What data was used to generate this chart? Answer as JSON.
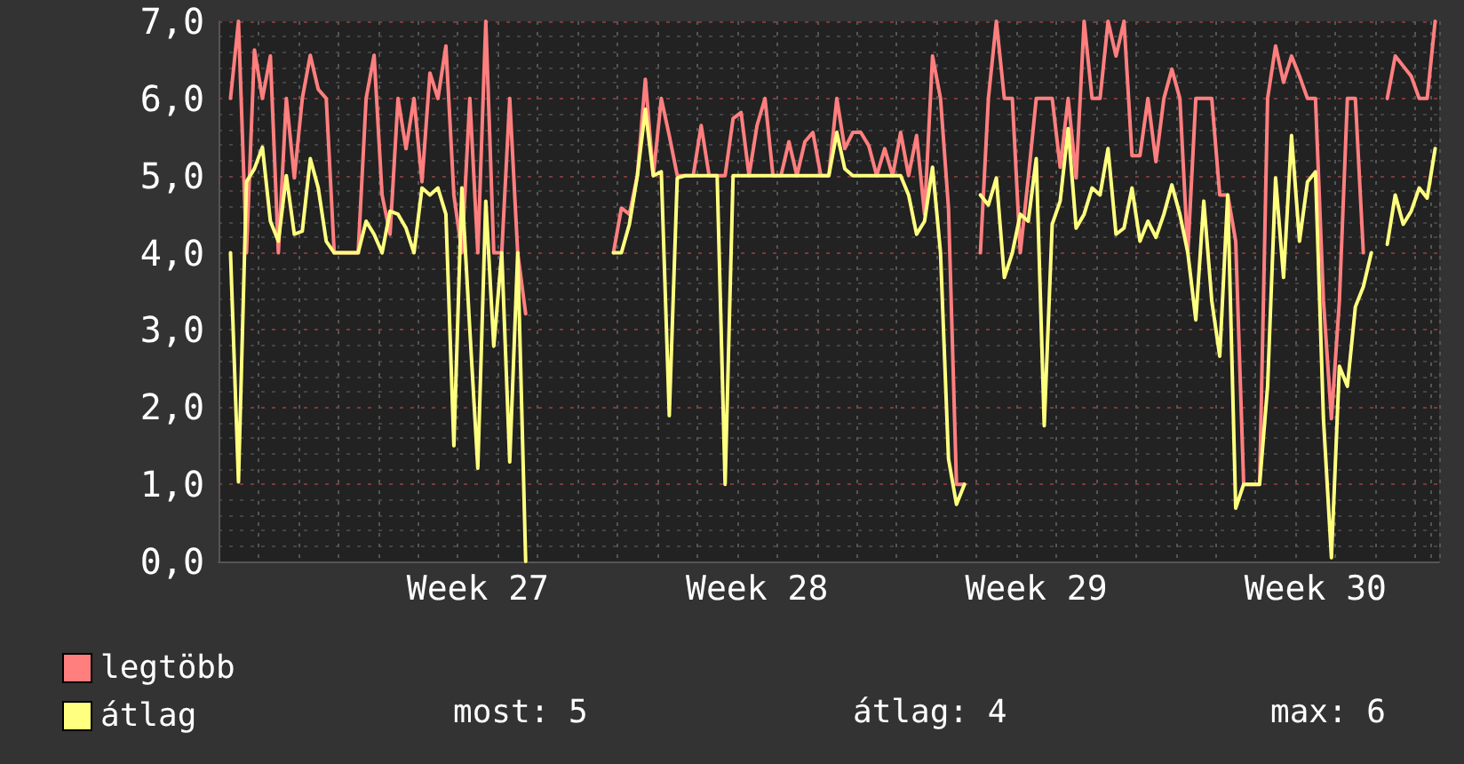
{
  "chart_data": {
    "type": "line",
    "categories": [
      null,
      null,
      null,
      null,
      null,
      null,
      null,
      null,
      null,
      null,
      null,
      null,
      null,
      null,
      null,
      null,
      null,
      null,
      null,
      null,
      null,
      null,
      null,
      null,
      null,
      null,
      null,
      null,
      null,
      null,
      null,
      null,
      "Week 27",
      null,
      null,
      null,
      null,
      null,
      null,
      null,
      null,
      null,
      null,
      null,
      null,
      null,
      null,
      null,
      null,
      null,
      null,
      null,
      null,
      null,
      null,
      null,
      null,
      null,
      null,
      null,
      null,
      null,
      null,
      null,
      null,
      null,
      null,
      "Week 28",
      null,
      null,
      null,
      null,
      null,
      null,
      null,
      null,
      null,
      null,
      null,
      null,
      null,
      null,
      null,
      null,
      null,
      null,
      null,
      null,
      null,
      null,
      null,
      null,
      null,
      null,
      null,
      null,
      null,
      null,
      null,
      null,
      null,
      null,
      "Week 29",
      null,
      null,
      null,
      null,
      null,
      null,
      null,
      null,
      null,
      null,
      null,
      null,
      null,
      null,
      null,
      null,
      null,
      null,
      null,
      null,
      null,
      null,
      null,
      null,
      null,
      null,
      null,
      null,
      null,
      null,
      null,
      null,
      null,
      null,
      "Week 30",
      null,
      null,
      null,
      null,
      null,
      null,
      null,
      null,
      null,
      null,
      null,
      null,
      null,
      null,
      null
    ],
    "ylim": [
      0,
      7
    ],
    "yticks": [
      {
        "value": 0,
        "label": "0,0"
      },
      {
        "value": 1,
        "label": "1,0"
      },
      {
        "value": 2,
        "label": "2,0"
      },
      {
        "value": 3,
        "label": "3,0"
      },
      {
        "value": 4,
        "label": "4,0"
      },
      {
        "value": 5,
        "label": "5,0"
      },
      {
        "value": 6,
        "label": "6,0"
      },
      {
        "value": 7,
        "label": "7,0"
      }
    ],
    "grid": true,
    "legend": "bottom left",
    "marker": "none",
    "line_style": "solid",
    "annotations": [
      "most: 5",
      "átlag: 4",
      "max: 6"
    ],
    "series": [
      {
        "name": "legtöbb",
        "color": "#ff7f7f",
        "values": [
          null,
          6.0,
          7.0,
          4.0,
          6.63,
          6.0,
          6.55,
          4.0,
          6.0,
          4.97,
          6.0,
          6.56,
          6.12,
          6.0,
          4.0,
          4.0,
          4.0,
          4.0,
          6.0,
          6.56,
          4.75,
          4.24,
          6.0,
          5.35,
          6.0,
          4.92,
          6.33,
          6.0,
          6.68,
          4.75,
          4.0,
          6.0,
          4.0,
          7.0,
          4.0,
          4.0,
          6.0,
          4.0,
          3.21,
          null,
          null,
          null,
          null,
          null,
          null,
          null,
          null,
          null,
          null,
          4.0,
          4.58,
          4.5,
          5.0,
          6.25,
          5.0,
          6.0,
          5.52,
          5.0,
          5.0,
          5.0,
          5.65,
          5.0,
          5.0,
          5.0,
          5.74,
          5.82,
          5.0,
          5.65,
          6.0,
          5.0,
          5.0,
          5.44,
          5.0,
          5.44,
          5.56,
          5.0,
          5.0,
          6.0,
          5.35,
          5.56,
          5.56,
          5.39,
          5.0,
          5.35,
          5.0,
          5.56,
          5.0,
          5.52,
          4.5,
          6.55,
          6.0,
          4.58,
          1.0,
          1.0,
          null,
          4.0,
          6.0,
          7.0,
          6.0,
          6.0,
          4.0,
          4.97,
          6.0,
          6.0,
          6.0,
          5.11,
          6.0,
          4.97,
          7.0,
          6.0,
          6.0,
          7.0,
          6.55,
          7.0,
          5.26,
          5.26,
          6.0,
          5.18,
          6.0,
          6.38,
          6.0,
          4.0,
          6.0,
          6.0,
          6.0,
          4.75,
          4.75,
          4.15,
          1.0,
          1.0,
          1.0,
          6.0,
          6.68,
          6.21,
          6.55,
          6.29,
          6.0,
          6.0,
          3.38,
          1.85,
          3.38,
          6.0,
          6.0,
          4.0,
          null,
          null,
          6.0,
          6.55,
          6.42,
          6.29,
          6.0,
          6.0,
          7.0
        ]
      },
      {
        "name": "átlag",
        "color": "#ffff80",
        "values": [
          null,
          4.0,
          1.03,
          4.92,
          5.09,
          5.37,
          4.41,
          4.15,
          5.0,
          4.24,
          4.28,
          5.22,
          4.84,
          4.15,
          4.0,
          4.0,
          4.0,
          4.0,
          4.41,
          4.24,
          4.0,
          4.54,
          4.5,
          4.32,
          4.0,
          4.84,
          4.75,
          4.84,
          4.5,
          1.5,
          4.84,
          3.0,
          1.21,
          4.67,
          2.79,
          4.0,
          1.29,
          4.0,
          0.0,
          null,
          null,
          null,
          null,
          null,
          null,
          null,
          null,
          null,
          null,
          4.0,
          4.0,
          4.37,
          5.0,
          5.86,
          5.0,
          5.05,
          1.89,
          4.97,
          5.0,
          5.0,
          5.0,
          5.0,
          5.0,
          1.0,
          5.0,
          5.0,
          5.0,
          5.0,
          5.0,
          5.0,
          5.0,
          5.0,
          5.0,
          5.0,
          5.0,
          5.0,
          5.0,
          5.56,
          5.09,
          5.0,
          5.0,
          5.0,
          5.0,
          5.0,
          5.0,
          5.0,
          4.75,
          4.24,
          4.41,
          5.11,
          4.0,
          1.33,
          0.74,
          1.0,
          null,
          4.75,
          4.62,
          4.97,
          3.68,
          4.0,
          4.5,
          4.41,
          5.22,
          1.76,
          4.37,
          4.67,
          5.61,
          4.32,
          4.5,
          4.84,
          4.75,
          5.35,
          4.24,
          4.32,
          4.84,
          4.15,
          4.41,
          4.2,
          4.5,
          4.88,
          4.5,
          4.0,
          3.13,
          4.67,
          3.38,
          2.66,
          4.75,
          0.69,
          1.0,
          1.0,
          1.0,
          2.27,
          4.97,
          3.68,
          5.52,
          4.15,
          4.92,
          5.05,
          1.85,
          0.05,
          2.53,
          2.27,
          3.3,
          3.56,
          4.0,
          null,
          4.11,
          4.75,
          4.37,
          4.54,
          4.84,
          4.71,
          5.35
        ]
      }
    ]
  }
}
